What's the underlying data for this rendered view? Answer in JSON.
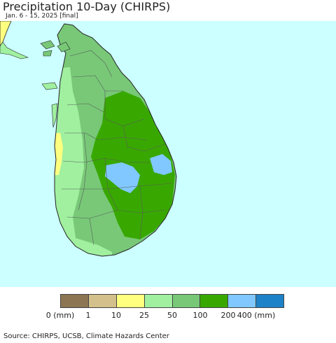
{
  "title": "Precipitation 10-Day (CHIRPS)",
  "subtitle": "Jan. 6 - 15, 2025 [final]",
  "source": "Source: CHIRPS, UCSB, Climate Hazards Center",
  "colors": {
    "ocean": "#ccffff",
    "outline": "#222222",
    "district_lines": "#5a5a5a"
  },
  "legend": {
    "colors": [
      "#8b7553",
      "#d4c08a",
      "#ffff80",
      "#a0f0a0",
      "#78c878",
      "#38a800",
      "#80c8ff",
      "#1e82c8"
    ],
    "labels": [
      "0 (mm)",
      "1",
      "10",
      "25",
      "50",
      "100",
      "200",
      "400 (mm)"
    ]
  }
}
